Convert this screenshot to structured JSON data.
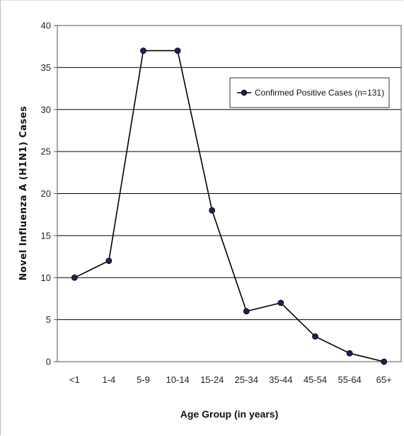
{
  "chart_data": {
    "type": "line",
    "xlabel": "Age Group (in years)",
    "ylabel": "Novel Influenza A (H1N1) Cases",
    "ylim": [
      0,
      40
    ],
    "yticks": [
      0,
      5,
      10,
      15,
      20,
      25,
      30,
      35,
      40
    ],
    "grid": true,
    "legend_position": "top-right",
    "categories": [
      "<1",
      "1-4",
      "5-9",
      "10-14",
      "15-24",
      "25-34",
      "35-44",
      "45-54",
      "55-64",
      "65+"
    ],
    "series": [
      {
        "name": "Confirmed Positive Cases (n=131)",
        "values": [
          10,
          12,
          37,
          37,
          18,
          6,
          7,
          3,
          1,
          0
        ],
        "color": "#000000",
        "marker_color": "#1f1f5a"
      }
    ]
  }
}
